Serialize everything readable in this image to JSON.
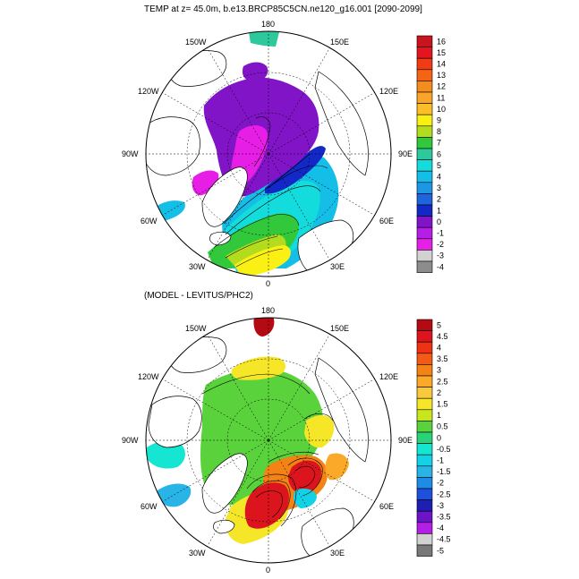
{
  "top_panel": {
    "title": "TEMP at z=  45.0m, b.e13.BRCP85C5CN.ne120_g16.001 [2090-2099]",
    "lon_labels": [
      "180",
      "150E",
      "120E",
      "90E",
      "60E",
      "30E",
      "0",
      "30W",
      "60W",
      "90W",
      "120W",
      "150W"
    ],
    "colorbar": {
      "labels": [
        "16",
        "15",
        "14",
        "13",
        "12",
        "11",
        "10",
        "9",
        "8",
        "7",
        "6",
        "5",
        "4",
        "3",
        "2",
        "1",
        "0",
        "-1",
        "-2",
        "-3",
        "-4"
      ],
      "colors": [
        "#c8141e",
        "#e6141e",
        "#f03c14",
        "#f56414",
        "#f58c1e",
        "#faa528",
        "#fabe28",
        "#faf014",
        "#b4dc1e",
        "#32c83c",
        "#2dc89b",
        "#14dcdc",
        "#14bee6",
        "#1e96e6",
        "#1e64dc",
        "#1428c8",
        "#8214c8",
        "#b41ee6",
        "#e61ee6",
        "#d2d2d2",
        "#8c8c8c"
      ]
    }
  },
  "bottom_panel": {
    "title": "(MODEL - LEVITUS/PHC2)",
    "lon_labels": [
      "180",
      "150E",
      "120E",
      "90E",
      "60E",
      "30E",
      "0",
      "30W",
      "60W",
      "90W",
      "120W",
      "150W"
    ],
    "colorbar": {
      "labels": [
        "5",
        "4.5",
        "4",
        "3.5",
        "3",
        "2.5",
        "2",
        "1.5",
        "1",
        "0.5",
        "0",
        "-0.5",
        "-1",
        "-1.5",
        "-2",
        "-2.5",
        "-3",
        "-3.5",
        "-4",
        "-4.5",
        "-5"
      ],
      "colors": [
        "#b40a14",
        "#dc141e",
        "#f03214",
        "#f55a14",
        "#f58214",
        "#faaa28",
        "#fac83c",
        "#f5e628",
        "#c8e61e",
        "#5ad23c",
        "#28d278",
        "#14e6d2",
        "#14d2e6",
        "#28b4e6",
        "#1e8ce6",
        "#1e50dc",
        "#1e1eb4",
        "#6e14c8",
        "#b41ee6",
        "#d2d2d2",
        "#787878"
      ]
    }
  }
}
